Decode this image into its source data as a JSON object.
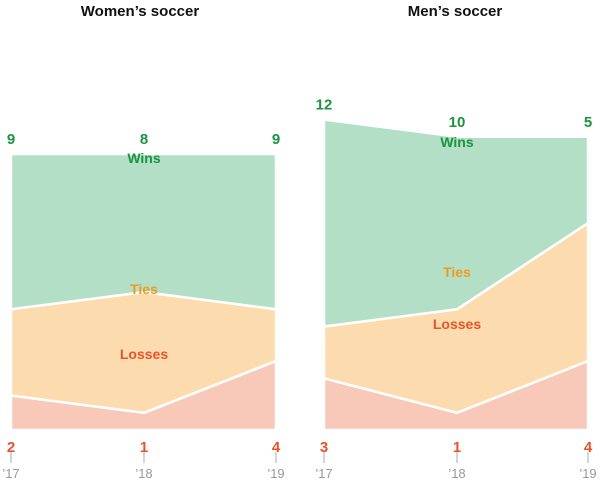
{
  "chart_data": [
    {
      "type": "area",
      "title": "Women’s soccer",
      "x": [
        "’17",
        "’18",
        "’19"
      ],
      "stack_order": [
        "Losses",
        "Ties",
        "Wins"
      ],
      "series": [
        {
          "name": "Wins",
          "values": [
            9,
            8,
            9
          ],
          "color": "#b3dfc6",
          "label_color": "#1a9441"
        },
        {
          "name": "Ties",
          "values": [
            5,
            7,
            3
          ],
          "color": "#fcdcae",
          "label_color": "#f09a1f"
        },
        {
          "name": "Losses",
          "values": [
            2,
            1,
            4
          ],
          "color": "#f8c8b8",
          "label_color": "#e8532a"
        }
      ],
      "value_labels": {
        "Wins": [
          "9",
          "8",
          "9"
        ],
        "Losses": [
          "2",
          "1",
          "4"
        ]
      }
    },
    {
      "type": "area",
      "title": "Men’s soccer",
      "x": [
        "’17",
        "’18",
        "’19"
      ],
      "stack_order": [
        "Losses",
        "Ties",
        "Wins"
      ],
      "series": [
        {
          "name": "Wins",
          "values": [
            12,
            10,
            5
          ],
          "color": "#b3dfc6",
          "label_color": "#1a9441"
        },
        {
          "name": "Ties",
          "values": [
            3,
            6,
            8
          ],
          "color": "#fcdcae",
          "label_color": "#f09a1f"
        },
        {
          "name": "Losses",
          "values": [
            3,
            1,
            4
          ],
          "color": "#f8c8b8",
          "label_color": "#e8532a"
        }
      ],
      "value_labels": {
        "Wins": [
          "12",
          "10",
          "5"
        ],
        "Losses": [
          "3",
          "1",
          "4"
        ]
      }
    }
  ]
}
